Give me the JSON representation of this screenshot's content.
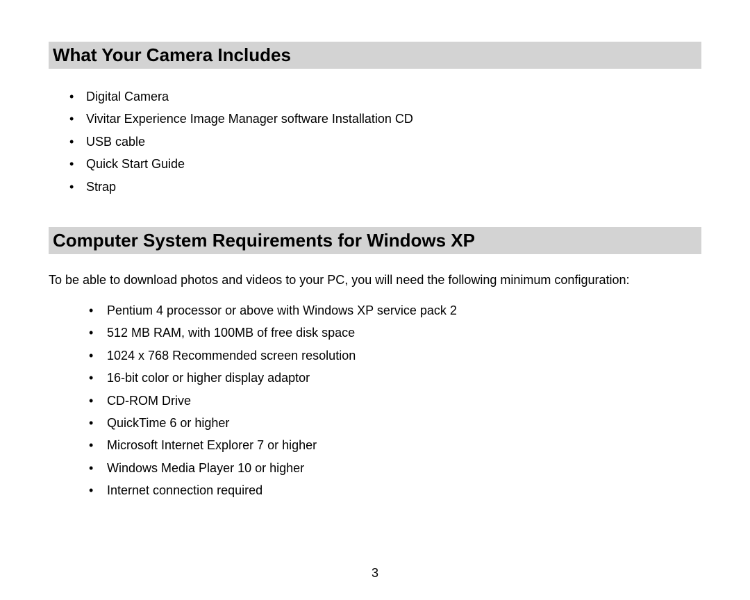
{
  "page": {
    "number": "3",
    "background_color": "#ffffff",
    "text_color": "#000000",
    "heading_bg_color": "#d3d3d3"
  },
  "sections": {
    "camera_includes": {
      "heading": "What Your Camera Includes",
      "items": [
        "Digital Camera",
        "Vivitar Experience Image Manager software Installation CD",
        "USB cable",
        "Quick Start Guide",
        "Strap"
      ]
    },
    "system_requirements": {
      "heading": "Computer System Requirements for Windows XP",
      "intro": "To be able to download photos and videos to your PC, you will need the following minimum configuration:",
      "items": [
        "Pentium 4 processor or above with Windows XP service pack 2",
        "512 MB RAM, with 100MB of free disk space",
        "1024 x 768 Recommended screen resolution",
        "16-bit color or higher display adaptor",
        "CD-ROM Drive",
        "QuickTime 6 or higher",
        "Microsoft Internet Explorer 7 or higher",
        "Windows Media Player 10 or higher",
        "Internet connection required"
      ]
    }
  },
  "typography": {
    "heading_fontsize": 26,
    "body_fontsize": 18,
    "font_family": "Arial, Helvetica, sans-serif"
  }
}
